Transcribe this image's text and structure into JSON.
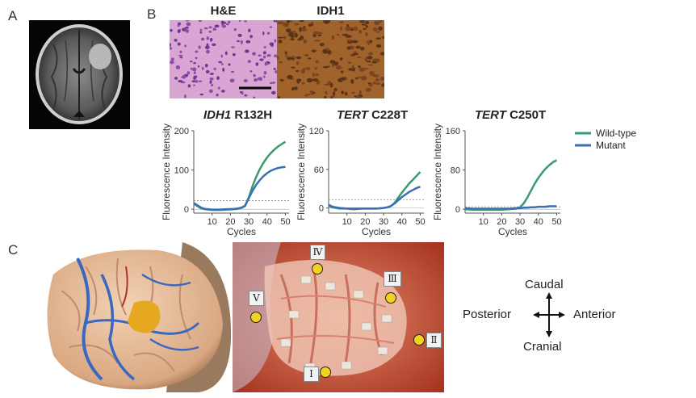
{
  "panels": {
    "a_label": "A",
    "b_label": "B",
    "c_label": "C"
  },
  "histology": {
    "he_label": "H&E",
    "idh1_label": "IDH1"
  },
  "charts": [
    {
      "gene": "IDH1",
      "mutation": "R132H",
      "ylabel": "Fluorescence Intensity",
      "xlabel": "Cycles"
    },
    {
      "gene": "TERT",
      "mutation": "C228T",
      "ylabel": "Fluorescence Intensity",
      "xlabel": "Cycles"
    },
    {
      "gene": "TERT",
      "mutation": "C250T",
      "ylabel": "Fluorescence Intensity",
      "xlabel": "Cycles"
    }
  ],
  "legend": {
    "wild_type": "Wild-type",
    "mutant": "Mutant",
    "wild_color": "#3a9a6e",
    "mutant_color": "#3a6fb5"
  },
  "chart_data": [
    {
      "type": "line",
      "title": "IDH1 R132H",
      "xlabel": "Cycles",
      "ylabel": "Fluorescence Intensity",
      "xlim": [
        0,
        52
      ],
      "ylim": [
        -10,
        200
      ],
      "xticks": [
        10,
        20,
        30,
        40,
        50
      ],
      "yticks": [
        0,
        100,
        200
      ],
      "threshold": 22,
      "x": [
        0,
        2,
        4,
        6,
        10,
        14,
        18,
        22,
        24,
        26,
        28,
        30,
        32,
        34,
        36,
        38,
        40,
        42,
        44,
        46,
        48,
        50
      ],
      "series": [
        {
          "name": "Wild-type",
          "values": [
            14,
            8,
            2,
            0,
            -2,
            -2,
            -1,
            0,
            1,
            3,
            8,
            30,
            58,
            82,
            102,
            118,
            132,
            143,
            152,
            160,
            166,
            172
          ]
        },
        {
          "name": "Mutant",
          "values": [
            16,
            10,
            4,
            1,
            -1,
            -1,
            0,
            1,
            2,
            4,
            9,
            28,
            46,
            62,
            74,
            84,
            92,
            98,
            102,
            105,
            107,
            108
          ]
        }
      ]
    },
    {
      "type": "line",
      "title": "TERT C228T",
      "xlabel": "Cycles",
      "ylabel": "Fluorescence Intensity",
      "xlim": [
        0,
        52
      ],
      "ylim": [
        -8,
        120
      ],
      "xticks": [
        10,
        20,
        30,
        40,
        50
      ],
      "yticks": [
        0,
        60,
        120
      ],
      "threshold": 13,
      "x": [
        0,
        2,
        4,
        6,
        10,
        14,
        18,
        22,
        26,
        30,
        32,
        34,
        36,
        38,
        40,
        42,
        44,
        46,
        48,
        50
      ],
      "series": [
        {
          "name": "Wild-type",
          "values": [
            3,
            1,
            0,
            -1,
            -1,
            -2,
            -1,
            -1,
            -1,
            0,
            1,
            3,
            8,
            16,
            24,
            31,
            38,
            44,
            50,
            56
          ]
        },
        {
          "name": "Mutant",
          "values": [
            5,
            2,
            1,
            0,
            -1,
            -1,
            -1,
            -1,
            -1,
            0,
            1,
            3,
            7,
            12,
            17,
            21,
            25,
            28,
            31,
            33
          ]
        }
      ]
    },
    {
      "type": "line",
      "title": "TERT C250T",
      "xlabel": "Cycles",
      "ylabel": "Fluorescence Intensity",
      "xlim": [
        0,
        52
      ],
      "ylim": [
        -8,
        160
      ],
      "xticks": [
        10,
        20,
        30,
        40,
        50
      ],
      "yticks": [
        0,
        80,
        160
      ],
      "threshold": 5,
      "x": [
        0,
        4,
        8,
        12,
        16,
        20,
        24,
        28,
        30,
        32,
        34,
        36,
        38,
        40,
        42,
        44,
        46,
        48,
        50
      ],
      "series": [
        {
          "name": "Wild-type",
          "values": [
            0,
            -1,
            -1,
            -1,
            -1,
            -1,
            0,
            1,
            4,
            12,
            24,
            38,
            52,
            64,
            74,
            83,
            90,
            96,
            100
          ]
        },
        {
          "name": "Mutant",
          "values": [
            2,
            1,
            1,
            1,
            1,
            1,
            1,
            2,
            2,
            3,
            3,
            4,
            4,
            5,
            5,
            5,
            6,
            6,
            6
          ]
        }
      ]
    }
  ],
  "markers": [
    {
      "label": "Ⅳ"
    },
    {
      "label": "Ⅲ"
    },
    {
      "label": "Ⅴ"
    },
    {
      "label": "Ⅱ"
    },
    {
      "label": "Ⅰ"
    }
  ],
  "compass": {
    "caudal": "Caudal",
    "cranial": "Cranial",
    "posterior": "Posterior",
    "anterior": "Anterior"
  }
}
